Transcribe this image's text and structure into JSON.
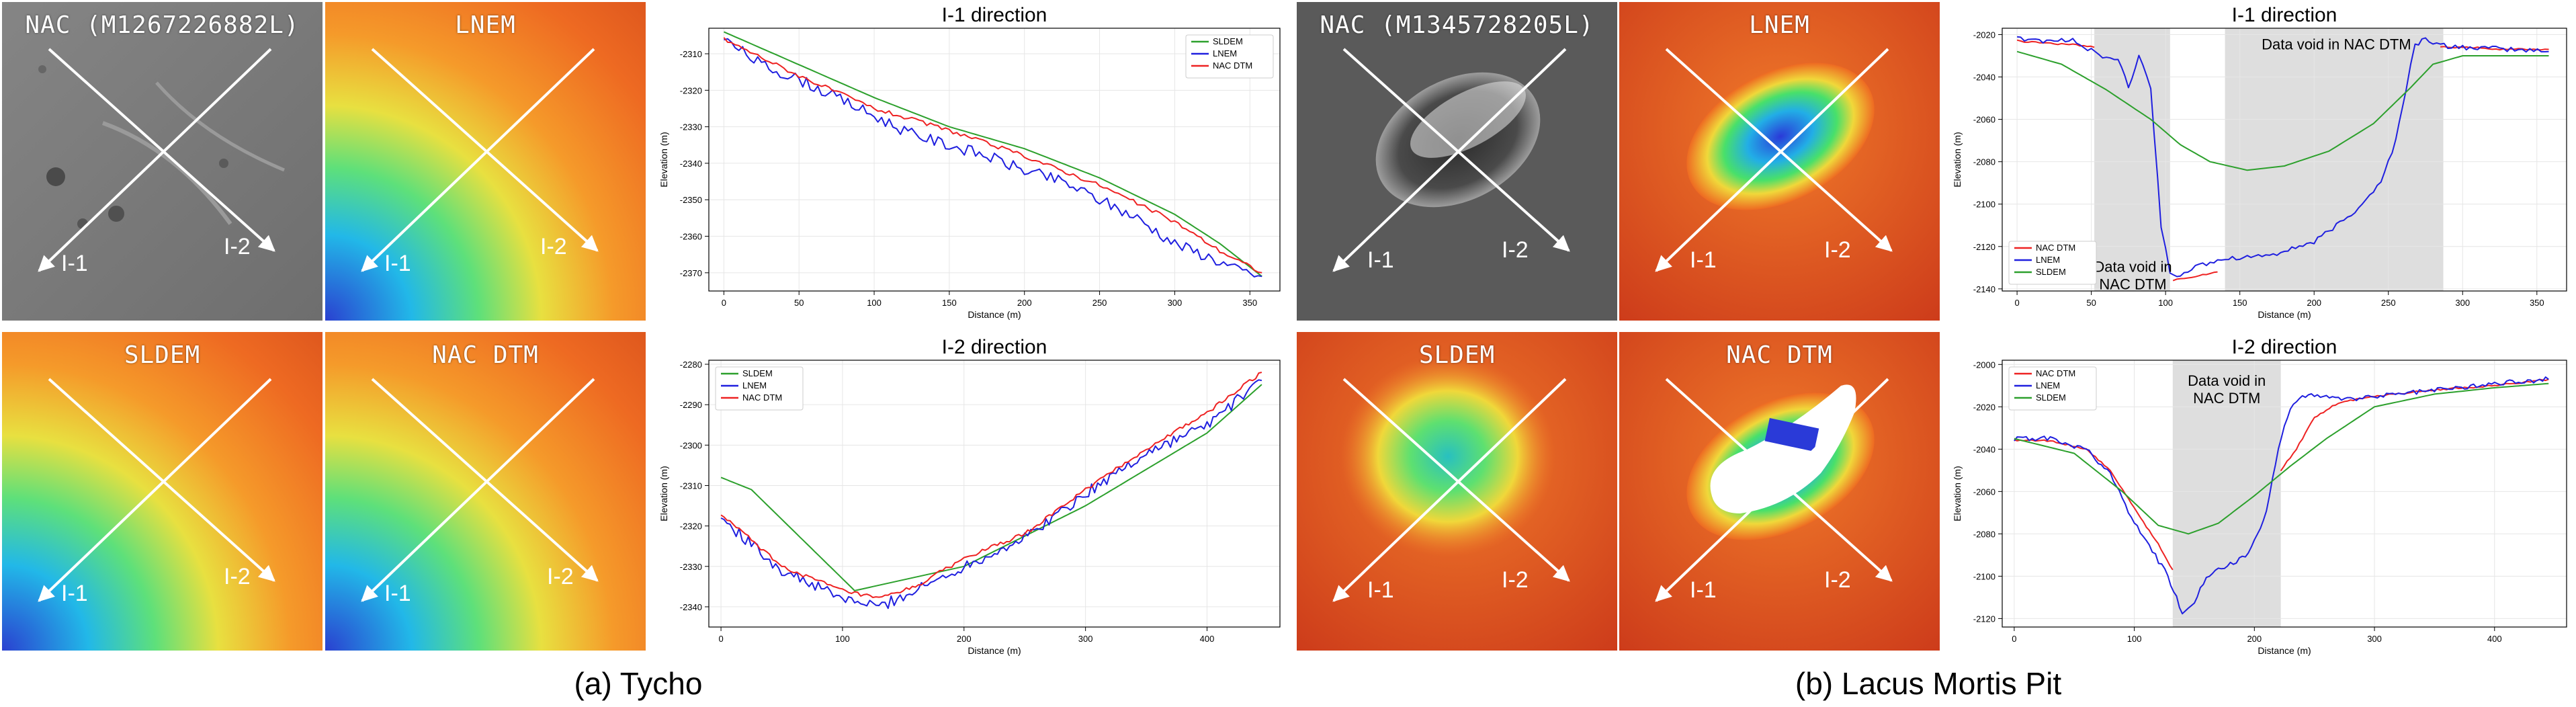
{
  "panels": {
    "a": {
      "caption": "(a) Tycho",
      "images": {
        "nac": {
          "title": "NAC (M1267226882L)",
          "label1": "I-1",
          "label2": "I-2"
        },
        "lnem": {
          "title": "LNEM",
          "label1": "I-1",
          "label2": "I-2"
        },
        "sldem": {
          "title": "SLDEM",
          "label1": "I-1",
          "label2": "I-2"
        },
        "nacdtm": {
          "title": "NAC DTM",
          "label1": "I-1",
          "label2": "I-2"
        }
      }
    },
    "b": {
      "caption": "(b) Lacus Mortis Pit",
      "images": {
        "nac": {
          "title": "NAC (M1345728205L)",
          "label1": "I-1",
          "label2": "I-2"
        },
        "lnem": {
          "title": "LNEM",
          "label1": "I-1",
          "label2": "I-2"
        },
        "sldem": {
          "title": "SLDEM",
          "label1": "I-1",
          "label2": "I-2"
        },
        "nacdtm": {
          "title": "NAC DTM",
          "label1": "I-1",
          "label2": "I-2"
        }
      }
    }
  },
  "colors": {
    "SLDEM": "#2ca02c",
    "LNEM": "#1f1fdf",
    "NAC DTM": "#ee2222",
    "void": "#d3d3d3"
  },
  "chart_data": [
    {
      "id": "a1",
      "type": "line",
      "title": "I-1 direction",
      "xlabel": "Distance (m)",
      "ylabel": "Elevation (m)",
      "xlim": [
        -10,
        370
      ],
      "ylim": [
        -2375,
        -2303
      ],
      "xticks": [
        0,
        50,
        100,
        150,
        200,
        250,
        300,
        350
      ],
      "yticks": [
        -2370,
        -2360,
        -2350,
        -2340,
        -2330,
        -2320,
        -2310
      ],
      "grid": true,
      "legend": "top-right",
      "noise": 1.6,
      "series": [
        {
          "name": "SLDEM",
          "x": [
            0,
            50,
            100,
            150,
            200,
            250,
            300,
            330,
            358
          ],
          "y": [
            -2304,
            -2313,
            -2322,
            -2330,
            -2336,
            -2344,
            -2354,
            -2362,
            -2371
          ]
        },
        {
          "name": "LNEM",
          "x": [
            0,
            25,
            50,
            75,
            100,
            125,
            150,
            175,
            200,
            225,
            250,
            275,
            300,
            325,
            340,
            358
          ],
          "y": [
            -2306,
            -2313,
            -2317,
            -2322,
            -2327,
            -2332,
            -2335,
            -2338,
            -2342,
            -2345,
            -2350,
            -2355,
            -2362,
            -2366,
            -2369,
            -2371
          ]
        },
        {
          "name": "NAC DTM",
          "x": [
            0,
            50,
            100,
            150,
            200,
            250,
            300,
            330,
            358
          ],
          "y": [
            -2306,
            -2316,
            -2325,
            -2331,
            -2338,
            -2346,
            -2356,
            -2364,
            -2370
          ]
        }
      ],
      "voids": [],
      "annotations": []
    },
    {
      "id": "a2",
      "type": "line",
      "title": "I-2 direction",
      "xlabel": "Distance (m)",
      "ylabel": "Elevation (m)",
      "xlim": [
        -10,
        460
      ],
      "ylim": [
        -2345,
        -2279
      ],
      "xticks": [
        0,
        100,
        200,
        300,
        400
      ],
      "yticks": [
        -2340,
        -2330,
        -2320,
        -2310,
        -2300,
        -2290,
        -2280
      ],
      "grid": true,
      "legend": "top-left",
      "noise": 1.4,
      "series": [
        {
          "name": "SLDEM",
          "x": [
            0,
            25,
            110,
            200,
            300,
            400,
            445
          ],
          "y": [
            -2308,
            -2311,
            -2336,
            -2330,
            -2315,
            -2297,
            -2285
          ]
        },
        {
          "name": "LNEM",
          "x": [
            0,
            50,
            100,
            130,
            160,
            200,
            250,
            300,
            350,
            400,
            445
          ],
          "y": [
            -2318,
            -2331,
            -2338,
            -2340,
            -2336,
            -2330,
            -2323,
            -2312,
            -2302,
            -2295,
            -2284
          ]
        },
        {
          "name": "NAC DTM",
          "x": [
            0,
            50,
            100,
            130,
            160,
            200,
            250,
            300,
            350,
            400,
            445
          ],
          "y": [
            -2317,
            -2330,
            -2336,
            -2338,
            -2335,
            -2328,
            -2322,
            -2311,
            -2301,
            -2292,
            -2282
          ]
        }
      ],
      "voids": [],
      "annotations": []
    },
    {
      "id": "b1",
      "type": "line",
      "title": "I-1 direction",
      "xlabel": "Distance (m)",
      "ylabel": "Elevation (m)",
      "xlim": [
        -10,
        370
      ],
      "ylim": [
        -2141,
        -2017
      ],
      "xticks": [
        0,
        50,
        100,
        150,
        200,
        250,
        300,
        350
      ],
      "yticks": [
        -2140,
        -2120,
        -2100,
        -2080,
        -2060,
        -2040,
        -2020
      ],
      "grid": true,
      "legend": "bottom-left",
      "noise": 1.2,
      "series": [
        {
          "name": "NAC DTM",
          "x": [
            0,
            20,
            40,
            52
          ],
          "y": [
            -2023,
            -2024,
            -2025,
            -2026
          ],
          "x2": [
            105,
            120,
            135
          ],
          "y2": [
            -2136,
            -2134,
            -2132
          ],
          "x3": [
            285,
            300,
            330,
            358
          ],
          "y3": [
            -2026,
            -2026,
            -2027,
            -2027
          ]
        },
        {
          "name": "LNEM",
          "x": [
            0,
            20,
            40,
            55,
            68,
            75,
            82,
            90,
            97,
            103,
            110,
            120,
            135,
            150,
            170,
            200,
            225,
            245,
            255,
            262,
            268,
            275,
            285,
            300,
            330,
            358
          ],
          "y": [
            -2022,
            -2023,
            -2023,
            -2030,
            -2032,
            -2045,
            -2030,
            -2045,
            -2110,
            -2133,
            -2133,
            -2130,
            -2126,
            -2125,
            -2124,
            -2118,
            -2105,
            -2090,
            -2070,
            -2045,
            -2025,
            -2022,
            -2025,
            -2026,
            -2027,
            -2028
          ]
        },
        {
          "name": "SLDEM",
          "x": [
            0,
            30,
            60,
            90,
            110,
            130,
            155,
            180,
            210,
            240,
            265,
            280,
            300,
            330,
            358
          ],
          "y": [
            -2028,
            -2034,
            -2046,
            -2060,
            -2072,
            -2080,
            -2084,
            -2082,
            -2075,
            -2062,
            -2045,
            -2034,
            -2030,
            -2030,
            -2030
          ]
        }
      ],
      "voids": [
        [
          52,
          103
        ],
        [
          140,
          287
        ]
      ],
      "annotations": [
        {
          "text": "Data void in NAC DTM",
          "x": 215,
          "y": -2027,
          "lines": [
            "Data void in NAC DTM"
          ]
        },
        {
          "text": "Data void in NAC DTM",
          "x": 78,
          "y": -2132,
          "lines": [
            "Data void in",
            "NAC DTM"
          ]
        }
      ]
    },
    {
      "id": "b2",
      "type": "line",
      "title": "I-2 direction",
      "xlabel": "Distance (m)",
      "ylabel": "Elevation (m)",
      "xlim": [
        -10,
        460
      ],
      "ylim": [
        -2124,
        -1998
      ],
      "xticks": [
        0,
        100,
        200,
        300,
        400
      ],
      "yticks": [
        -2120,
        -2100,
        -2080,
        -2060,
        -2040,
        -2020,
        -2000
      ],
      "grid": true,
      "legend": "top-left",
      "noise": 1.2,
      "series": [
        {
          "name": "NAC DTM",
          "x": [
            0,
            30,
            60,
            80,
            100,
            120,
            132
          ],
          "y": [
            -2036,
            -2036,
            -2040,
            -2050,
            -2068,
            -2085,
            -2097
          ],
          "x2": [
            222,
            235,
            250,
            270,
            300,
            350,
            400,
            445
          ],
          "y2": [
            -2050,
            -2040,
            -2025,
            -2018,
            -2015,
            -2012,
            -2010,
            -2007
          ]
        },
        {
          "name": "LNEM",
          "x": [
            0,
            30,
            60,
            80,
            100,
            115,
            128,
            140,
            150,
            160,
            175,
            195,
            210,
            220,
            230,
            240,
            250,
            275,
            300,
            350,
            400,
            445
          ],
          "y": [
            -2035,
            -2035,
            -2040,
            -2052,
            -2075,
            -2088,
            -2100,
            -2117,
            -2112,
            -2100,
            -2096,
            -2090,
            -2070,
            -2040,
            -2020,
            -2015,
            -2014,
            -2017,
            -2015,
            -2012,
            -2009,
            -2007
          ]
        },
        {
          "name": "SLDEM",
          "x": [
            0,
            50,
            90,
            120,
            145,
            170,
            200,
            230,
            260,
            300,
            350,
            400,
            445
          ],
          "y": [
            -2035,
            -2042,
            -2060,
            -2076,
            -2080,
            -2075,
            -2062,
            -2048,
            -2035,
            -2020,
            -2014,
            -2011,
            -2009
          ]
        }
      ],
      "voids": [
        [
          132,
          222
        ]
      ],
      "annotations": [
        {
          "text": "Data void in NAC DTM",
          "x": 177,
          "y": -2010,
          "lines": [
            "Data void in",
            "NAC DTM"
          ]
        }
      ]
    }
  ]
}
